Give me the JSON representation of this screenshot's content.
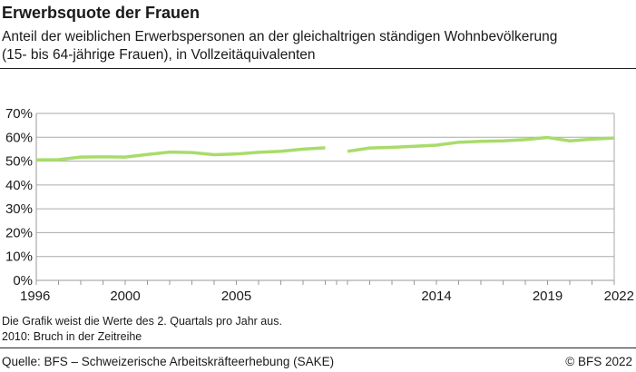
{
  "title": "Erwerbsquote der Frauen",
  "subtitle_line1": "Anteil der weiblichen Erwerbspersonen an der gleichaltrigen ständigen Wohnbevölkerung",
  "subtitle_line2": "(15- bis 64-jährige Frauen), in Vollzeitäquivalenten",
  "notes": [
    "Die Grafik weist die Werte des 2. Quartals pro Jahr aus.",
    "2010: Bruch in der Zeitreihe"
  ],
  "source": "Quelle: BFS – Schweizerische Arbeitskräfteerhebung (SAKE)",
  "copyright": "© BFS 2022",
  "chart_data": {
    "type": "line",
    "title": "",
    "xlabel": "",
    "ylabel": "",
    "ylim": [
      0,
      70
    ],
    "yticks": [
      "0%",
      "10%",
      "20%",
      "30%",
      "40%",
      "50%",
      "60%",
      "70%"
    ],
    "xtick_labels": [
      "1996",
      "2000",
      "2005",
      "2014",
      "2019",
      "2022"
    ],
    "grid": true,
    "series_break_before": 2010,
    "color": "#a8dc6a",
    "x": [
      1996,
      1997,
      1998,
      1999,
      2000,
      2001,
      2002,
      2003,
      2004,
      2005,
      2006,
      2007,
      2008,
      2009,
      2010,
      2011,
      2012,
      2013,
      2014,
      2015,
      2016,
      2017,
      2018,
      2019,
      2020,
      2021,
      2022
    ],
    "values": [
      50.5,
      50.6,
      51.7,
      51.8,
      51.7,
      52.8,
      53.8,
      53.6,
      52.7,
      53.0,
      53.7,
      54.1,
      55.0,
      55.6,
      54.1,
      55.5,
      55.8,
      56.2,
      56.7,
      57.9,
      58.3,
      58.5,
      59.0,
      59.9,
      58.5,
      59.2,
      59.7
    ]
  }
}
